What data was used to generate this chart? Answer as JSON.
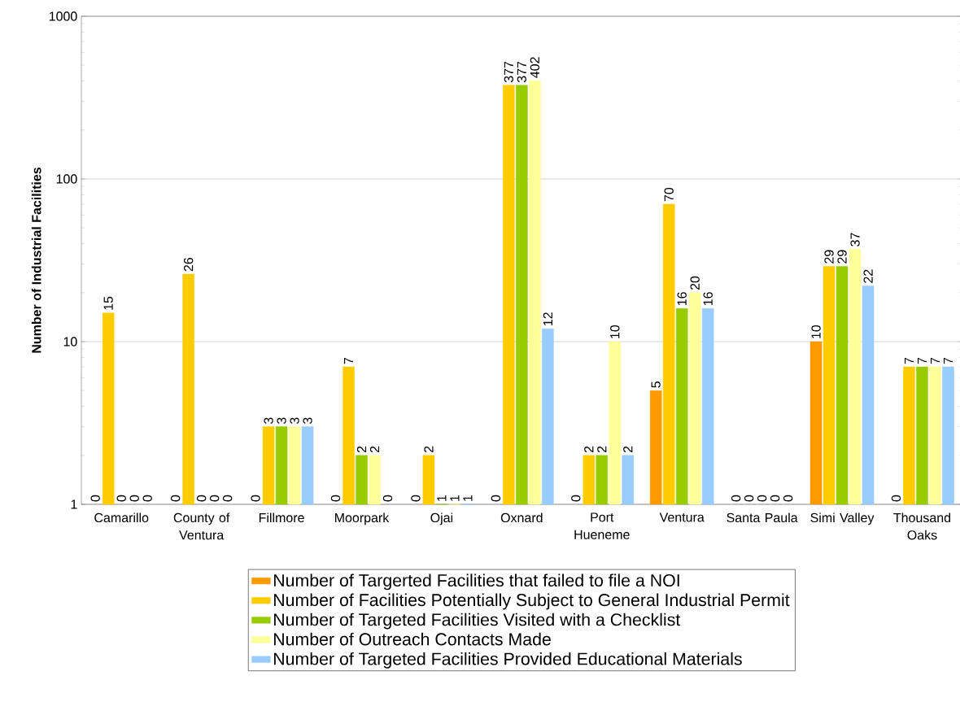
{
  "chart_data": {
    "type": "bar",
    "ylabel": "Number of Industrial Facilities",
    "categories": [
      "Camarillo",
      "County of Ventura",
      "Fillmore",
      "Moorpark",
      "Ojai",
      "Oxnard",
      "Port Hueneme",
      "Ventura",
      "Santa Paula",
      "Simi Valley",
      "Thousand Oaks"
    ],
    "series": [
      {
        "name": "Number of Targerted Facilities that failed to file a NOI",
        "color": "#ff9900",
        "values": [
          null,
          null,
          null,
          null,
          null,
          null,
          null,
          5,
          null,
          10,
          null
        ],
        "value_labels": [
          "0",
          "0",
          "0",
          "0",
          "0",
          "0",
          "0",
          "5",
          "0",
          "10",
          "0"
        ]
      },
      {
        "name": "Number of Facilities Potentially Subject to General Industrial Permit",
        "color": "#ffcc00",
        "values": [
          15,
          26,
          3,
          7,
          2,
          377,
          2,
          70,
          null,
          29,
          7
        ],
        "value_labels": [
          "15",
          "26",
          "3",
          "7",
          "2",
          "377",
          "2",
          "70",
          "0",
          "29",
          "7"
        ]
      },
      {
        "name": "Number of Targeted Facilities Visited with a Checklist",
        "color": "#99cc00",
        "values": [
          null,
          null,
          3,
          2,
          1,
          377,
          2,
          16,
          null,
          29,
          7
        ],
        "value_labels": [
          "0",
          "0",
          "3",
          "2",
          "1",
          "377",
          "2",
          "16",
          "0",
          "29",
          "7"
        ]
      },
      {
        "name": "Number of Outreach Contacts Made",
        "color": "#ffff99",
        "values": [
          null,
          null,
          3,
          2,
          1,
          402,
          10,
          20,
          null,
          37,
          7
        ],
        "value_labels": [
          "0",
          "0",
          "3",
          "2",
          "1",
          "402",
          "10",
          "20",
          "0",
          "37",
          "7"
        ]
      },
      {
        "name": "Number of Targeted Facilities Provided Educational Materials",
        "color": "#99ccff",
        "values": [
          null,
          null,
          3,
          null,
          1,
          12,
          2,
          16,
          null,
          22,
          7
        ],
        "value_labels": [
          "0",
          "0",
          "3",
          "0",
          "1",
          "12",
          "2",
          "16",
          "0",
          "22",
          "7"
        ]
      }
    ],
    "log": true,
    "ylim": [
      1,
      1000
    ],
    "yticks": [
      1,
      10,
      100,
      1000
    ],
    "grid": "y",
    "legend": "bottom"
  }
}
